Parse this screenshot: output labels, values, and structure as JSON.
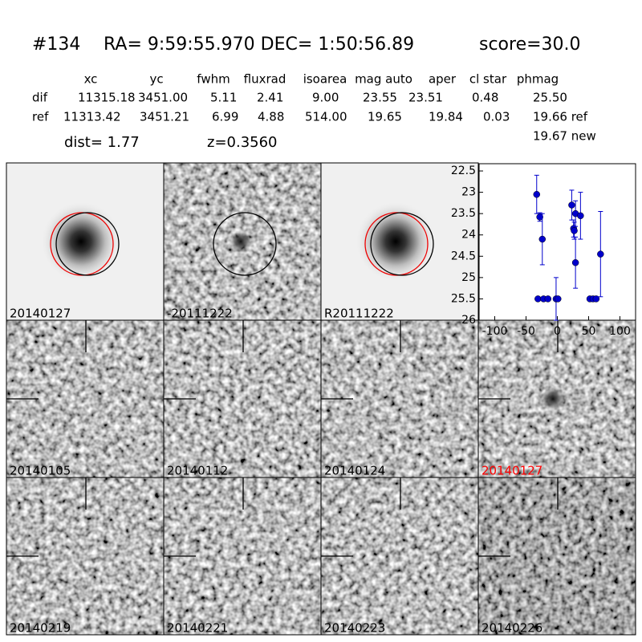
{
  "header": {
    "id": "#134",
    "coords": "RA= 9:59:55.970 DEC= 1:50:56.89",
    "score": "score=30.0"
  },
  "table": {
    "columns": [
      "xc",
      "yc",
      "fwhm",
      "fluxrad",
      "isoarea",
      "mag auto",
      "aper",
      "cl star",
      "phmag"
    ],
    "rows": [
      [
        "dif",
        "11315.18",
        "3451.00",
        "5.11",
        "2.41",
        "9.00",
        "23.55",
        "23.51",
        "0.48",
        "25.50"
      ],
      [
        "ref",
        "11313.42",
        "3451.21",
        "6.99",
        "4.88",
        "514.00",
        "19.65",
        "19.84",
        "0.03",
        "19.66 ref"
      ]
    ],
    "extra": "19.67 new"
  },
  "summary": {
    "dist": "dist=  1.77",
    "z": "z=0.3560"
  },
  "panels": [
    {
      "label": "20140127"
    },
    {
      "label": "-20111222"
    },
    {
      "label": "R20111222"
    },
    {
      "label": "20140105"
    },
    {
      "label": "20140112"
    },
    {
      "label": "20140124"
    },
    {
      "label": "20140127",
      "label_color": "#ff0000"
    },
    {
      "label": "20140219"
    },
    {
      "label": "20140221"
    },
    {
      "label": "20140223"
    },
    {
      "label": "20140226"
    }
  ],
  "chart_data": {
    "type": "scatter",
    "color": "#0000cc",
    "x": [
      -33,
      -28,
      -24,
      -31,
      -22,
      -15,
      -2,
      1,
      23,
      26,
      27,
      29,
      29,
      37,
      52,
      57,
      62,
      69
    ],
    "values": [
      23.05,
      23.58,
      24.1,
      25.5,
      25.5,
      25.5,
      25.5,
      25.5,
      23.3,
      23.85,
      23.9,
      23.5,
      24.65,
      23.55,
      25.5,
      25.5,
      25.5,
      24.45
    ],
    "errors": [
      0.45,
      0.1,
      0.6,
      null,
      null,
      null,
      0.5,
      null,
      0.35,
      0.2,
      0.2,
      0.3,
      0.6,
      0.55,
      null,
      null,
      null,
      1.0
    ],
    "xlim": [
      -125,
      125
    ],
    "xticks": [
      -100,
      -50,
      0,
      50,
      100
    ],
    "ylim": [
      26.0,
      22.33
    ],
    "yticks": [
      22.5,
      23.0,
      23.5,
      24.0,
      24.5,
      25.0,
      25.5,
      26.0
    ]
  }
}
